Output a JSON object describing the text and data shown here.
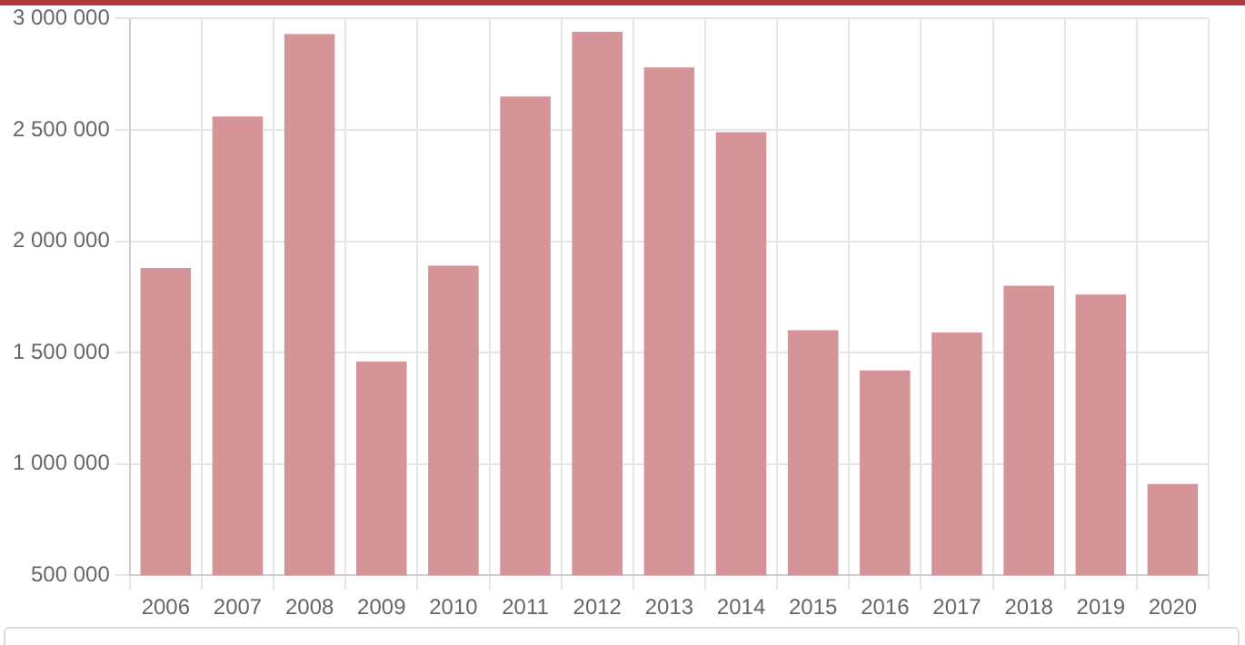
{
  "chart_data": {
    "type": "bar",
    "categories": [
      "2006",
      "2007",
      "2008",
      "2009",
      "2010",
      "2011",
      "2012",
      "2013",
      "2014",
      "2015",
      "2016",
      "2017",
      "2018",
      "2019",
      "2020"
    ],
    "values": [
      1880000,
      2560000,
      2930000,
      1460000,
      1890000,
      2650000,
      2940000,
      2780000,
      2490000,
      1600000,
      1420000,
      1590000,
      1800000,
      1760000,
      910000
    ],
    "color": "#d59497",
    "ylim": [
      500000,
      3000000
    ],
    "yticks": [
      {
        "value": 500000,
        "label": "500 000"
      },
      {
        "value": 1000000,
        "label": "1 000 000"
      },
      {
        "value": 1500000,
        "label": "1 500 000"
      },
      {
        "value": 2000000,
        "label": "2 000 000"
      },
      {
        "value": 2500000,
        "label": "2 500 000"
      },
      {
        "value": 3000000,
        "label": "3 000 000"
      }
    ],
    "grid": true
  }
}
